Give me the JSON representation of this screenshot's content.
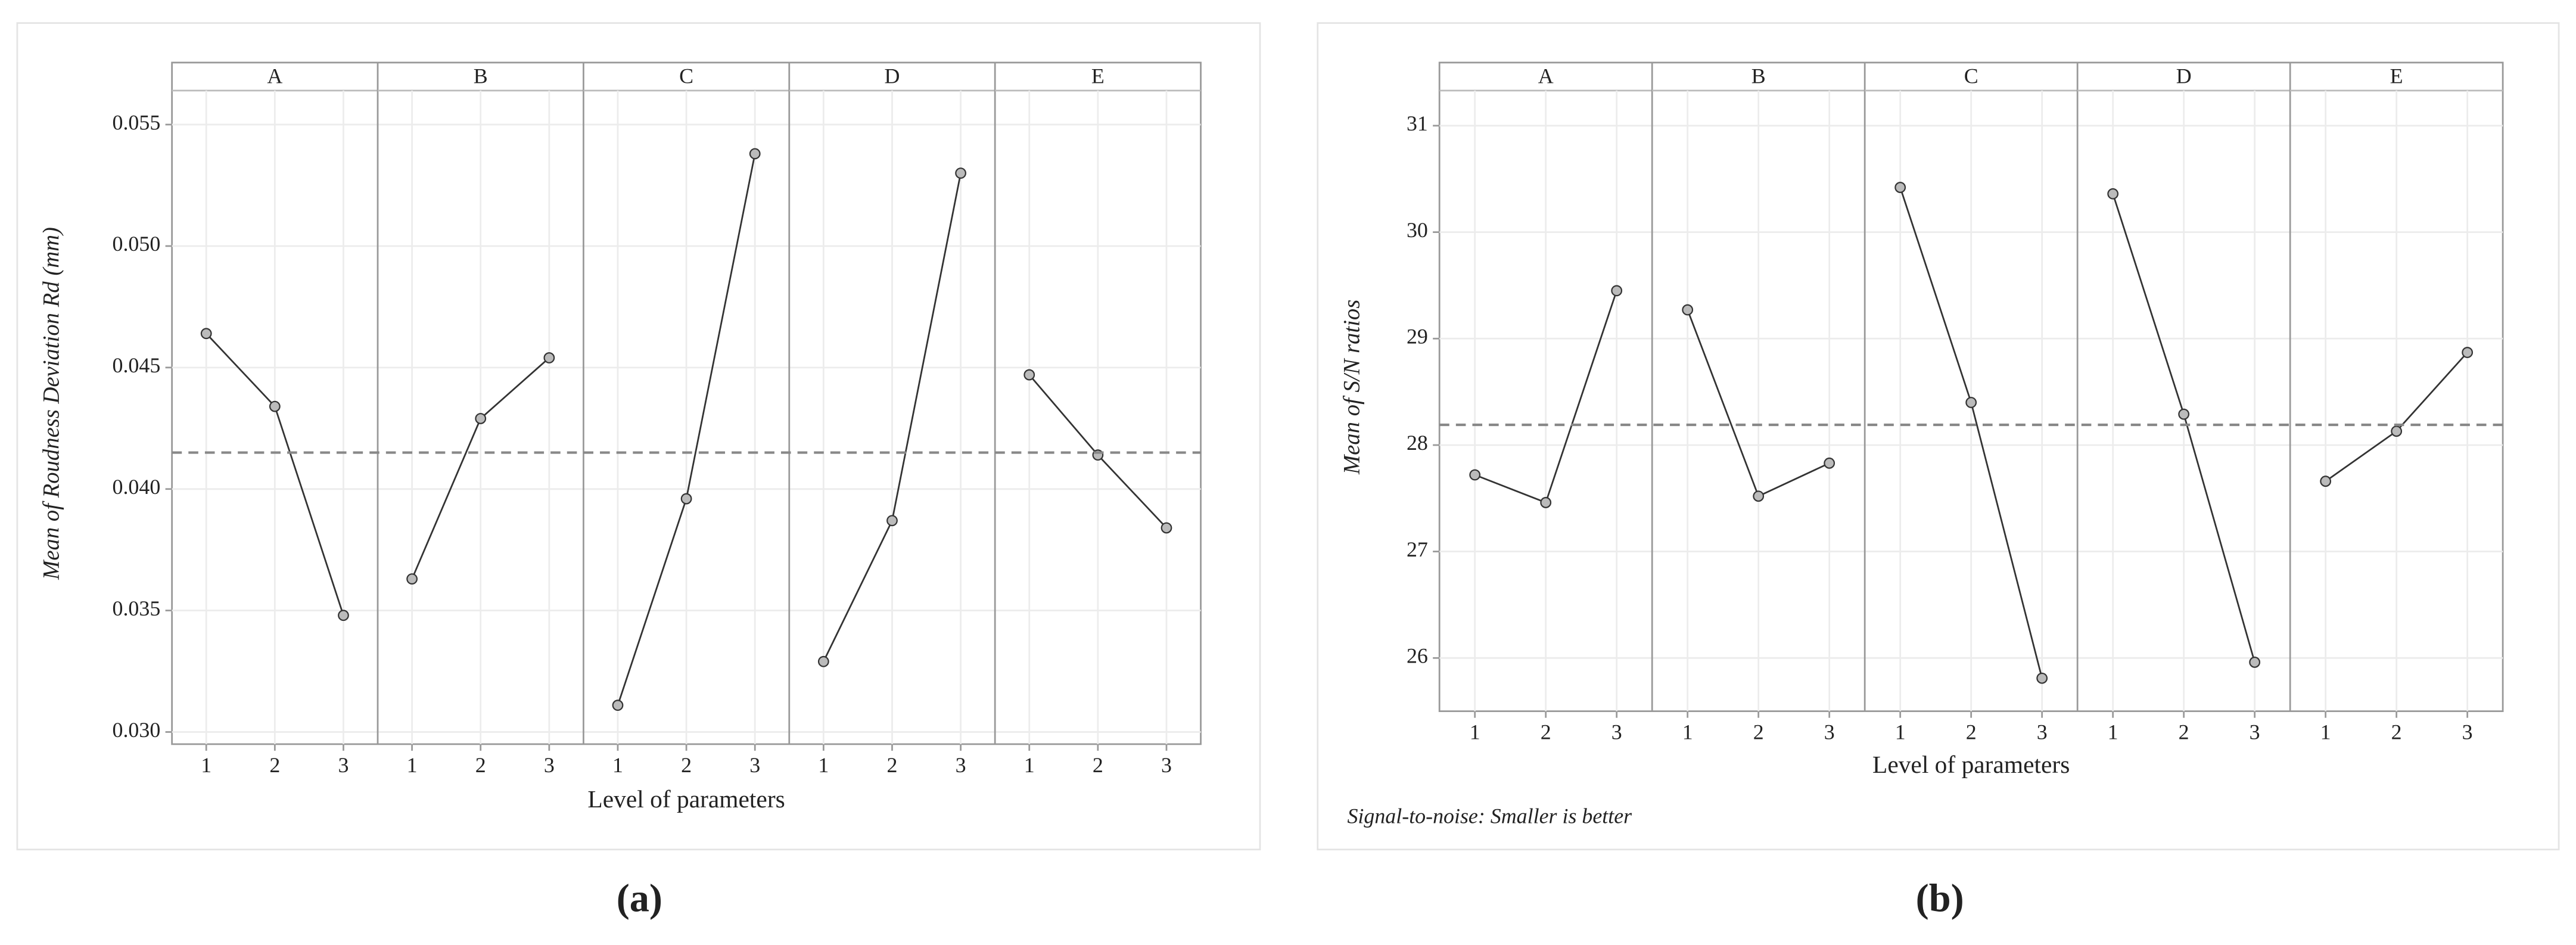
{
  "chart_data": [
    {
      "type": "line",
      "caption": "(a)",
      "y_label": "Mean of Roudness Deviation Rd (mm)",
      "x_label": "Level of parameters",
      "categories": [
        1,
        2,
        3
      ],
      "panels": [
        {
          "label": "A",
          "values": [
            0.0464,
            0.0434,
            0.0348
          ]
        },
        {
          "label": "B",
          "values": [
            0.0363,
            0.0429,
            0.0454
          ]
        },
        {
          "label": "C",
          "values": [
            0.0311,
            0.0396,
            0.0538
          ]
        },
        {
          "label": "D",
          "values": [
            0.0329,
            0.0387,
            0.053
          ]
        },
        {
          "label": "E",
          "values": [
            0.0447,
            0.0414,
            0.0384
          ]
        }
      ],
      "mean": 0.0415,
      "color": "#333333",
      "mean_color": "#888888",
      "ylim": [
        0.0295,
        0.0564
      ],
      "yticks": [
        {
          "value": 0.03,
          "label": "0.030"
        },
        0.035,
        {
          "value": 0.04,
          "label": "0.040"
        },
        0.045,
        {
          "value": 0.05,
          "label": "0.050"
        },
        0.055
      ],
      "grid": true
    },
    {
      "type": "line",
      "caption": "(b)",
      "y_label": "Mean of S/N ratios",
      "x_label": "Level of parameters",
      "footnote": "Signal-to-noise: Smaller is better",
      "categories": [
        1,
        2,
        3
      ],
      "panels": [
        {
          "label": "A",
          "values": [
            27.72,
            27.46,
            29.45
          ]
        },
        {
          "label": "B",
          "values": [
            29.27,
            27.52,
            27.83
          ]
        },
        {
          "label": "C",
          "values": [
            30.42,
            28.4,
            25.81
          ]
        },
        {
          "label": "D",
          "values": [
            30.36,
            28.29,
            25.96
          ]
        },
        {
          "label": "E",
          "values": [
            27.66,
            28.13,
            28.87
          ]
        }
      ],
      "mean": 28.19,
      "color": "#333333",
      "mean_color": "#888888",
      "ylim": [
        25.5,
        31.33
      ],
      "yticks": [
        26,
        27,
        28,
        29,
        30,
        31
      ],
      "grid": true
    }
  ]
}
